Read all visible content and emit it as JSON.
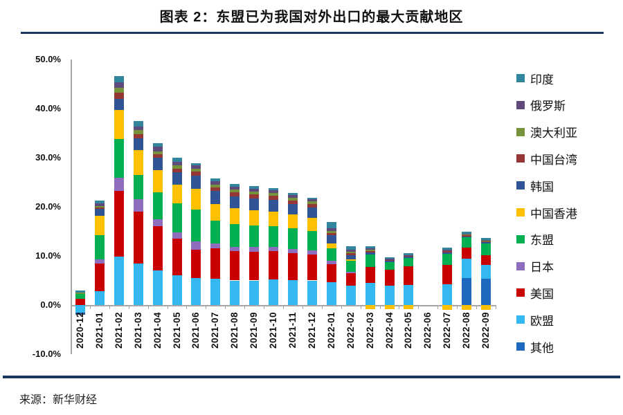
{
  "header": {
    "title": "图表 2：东盟已为我国对外出口的最大贡献地区"
  },
  "footer": {
    "source": "来源：新华财经"
  },
  "colors": {
    "rule": "#17365D",
    "axis": "#a6a6a6",
    "text": "#111111"
  },
  "chart_data": {
    "type": "bar",
    "stacked": true,
    "title": "图表 2：东盟已为我国对外出口的最大贡献地区",
    "xlabel": "",
    "ylabel": "",
    "ylim": [
      -10,
      50
    ],
    "grid": false,
    "legend_position": "right",
    "legend_order": "top-to-bottom is reverse of stacking order",
    "yticks": [
      {
        "value": 50,
        "label": "50.0%"
      },
      {
        "value": 40,
        "label": "40.0%"
      },
      {
        "value": 30,
        "label": "30.0%"
      },
      {
        "value": 20,
        "label": "20.0%"
      },
      {
        "value": 10,
        "label": "10.0%"
      },
      {
        "value": 0,
        "label": "0.0%"
      },
      {
        "value": -10,
        "label": "-10.0%"
      }
    ],
    "categories": [
      "2020-12",
      "2021-01",
      "2021-02",
      "2021-03",
      "2021-04",
      "2021-05",
      "2021-06",
      "2021-07",
      "2021-08",
      "2021-09",
      "2021-10",
      "2021-11",
      "2021-12",
      "2022-01",
      "2022-02",
      "2022-03",
      "2022-04",
      "2022-05",
      "2022-06",
      "2022-07",
      "2022-08",
      "2022-09"
    ],
    "series": [
      {
        "name": "其他",
        "color": "#1E69C0",
        "values": [
          0,
          0,
          0,
          0,
          0,
          0,
          0,
          0,
          0,
          0,
          0,
          0,
          0,
          0,
          0,
          0,
          0,
          0,
          0,
          0,
          5.5,
          5.4
        ]
      },
      {
        "name": "欧盟",
        "color": "#33B8F0",
        "values": [
          -1.5,
          2.8,
          9.8,
          8.4,
          7.0,
          6.0,
          5.5,
          5.3,
          5.0,
          5.0,
          5.2,
          5.1,
          5.0,
          4.6,
          3.9,
          4.5,
          3.9,
          4.1,
          0,
          4.2,
          3.9,
          2.8
        ]
      },
      {
        "name": "美国",
        "color": "#C80000",
        "values": [
          1.3,
          5.7,
          13.5,
          10.6,
          9.0,
          7.5,
          5.8,
          6.3,
          6.0,
          5.9,
          5.8,
          5.5,
          5.3,
          3.7,
          2.6,
          3.3,
          3.3,
          3.8,
          0,
          3.9,
          2.3,
          2.0
        ]
      },
      {
        "name": "日本",
        "color": "#8E6CBE",
        "values": [
          0,
          0.8,
          2.6,
          2.5,
          1.5,
          1.3,
          1.7,
          0.9,
          0.9,
          0.9,
          0.8,
          0.8,
          0.8,
          0.7,
          0.3,
          0,
          0,
          0,
          0,
          0,
          0,
          0
        ]
      },
      {
        "name": "东盟",
        "color": "#00AF50",
        "values": [
          1.0,
          4.9,
          7.9,
          5.0,
          5.5,
          5.9,
          6.4,
          4.7,
          4.6,
          4.4,
          4.2,
          4.2,
          4.0,
          2.6,
          2.2,
          2.5,
          1.6,
          1.7,
          0,
          2.3,
          2.1,
          2.4
        ]
      },
      {
        "name": "中国香港",
        "color": "#FFC000",
        "values": [
          0,
          4.0,
          5.9,
          5.0,
          4.5,
          3.8,
          4.2,
          3.4,
          3.2,
          3.1,
          3.0,
          2.8,
          2.6,
          1.0,
          0.3,
          -0.9,
          -0.9,
          -0.9,
          0,
          -1.0,
          -1.0,
          -1.0
        ]
      },
      {
        "name": "韩国",
        "color": "#2F5597",
        "values": [
          -0.5,
          1.4,
          2.3,
          2.5,
          2.5,
          2.5,
          2.7,
          2.6,
          2.4,
          2.4,
          2.4,
          2.2,
          2.2,
          1.6,
          0.9,
          0.4,
          0.2,
          0.2,
          0,
          0.3,
          0.2,
          0.2
        ]
      },
      {
        "name": "中国台湾",
        "color": "#953735",
        "values": [
          0,
          0.3,
          1.2,
          0.8,
          0.7,
          0.8,
          0.9,
          0.8,
          0.8,
          0.8,
          0.8,
          0.7,
          0.7,
          0.5,
          0.3,
          0.3,
          0.2,
          0.2,
          0,
          0.3,
          0.2,
          0.2
        ]
      },
      {
        "name": "澳大利亚",
        "color": "#76933C",
        "values": [
          0.3,
          0.3,
          1.0,
          0.8,
          0.6,
          0.6,
          0.6,
          0.5,
          0.6,
          0.6,
          0.6,
          0.5,
          0.5,
          0.4,
          0.3,
          0.2,
          0,
          0,
          0,
          0,
          0.1,
          0.1
        ]
      },
      {
        "name": "俄罗斯",
        "color": "#5F4A7B",
        "values": [
          0,
          0.5,
          1.1,
          0.8,
          0.9,
          0.8,
          0.7,
          0.7,
          0.6,
          0.6,
          0.6,
          0.6,
          0.4,
          0.6,
          0.5,
          0.3,
          0.2,
          0.2,
          0,
          0.2,
          0.2,
          0.2
        ]
      },
      {
        "name": "印度",
        "color": "#31859C",
        "values": [
          0.4,
          0.6,
          1.3,
          1.1,
          0.8,
          0.8,
          0.4,
          0.6,
          0.6,
          0.5,
          0.4,
          0.4,
          0.3,
          1.2,
          0.7,
          0.5,
          0.3,
          0.3,
          0,
          0.5,
          0.4,
          0.3
        ]
      }
    ]
  }
}
